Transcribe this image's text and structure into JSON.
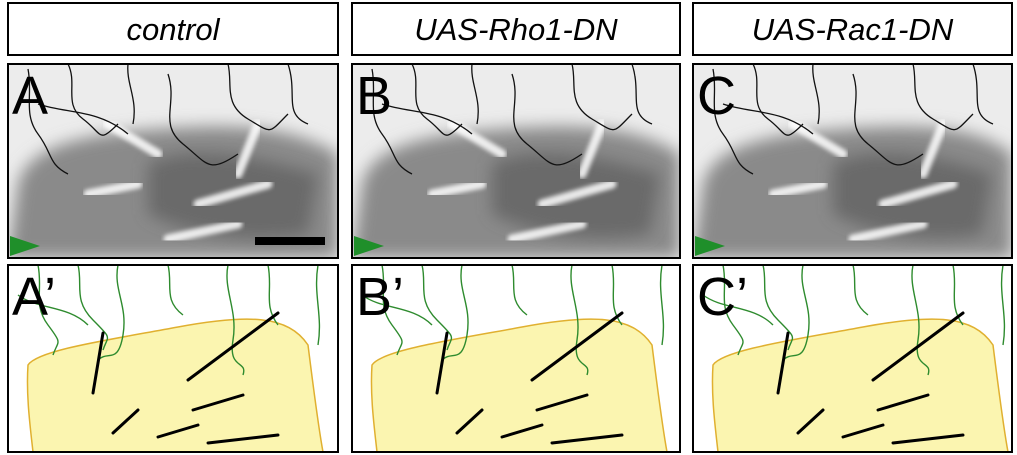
{
  "headers": [
    "control",
    "UAS-Rho1-DN",
    "UAS-Rac1-DN"
  ],
  "panels": {
    "top": [
      "A",
      "B",
      "C"
    ],
    "bottom": [
      "A’",
      "B’",
      "C’"
    ]
  }
}
